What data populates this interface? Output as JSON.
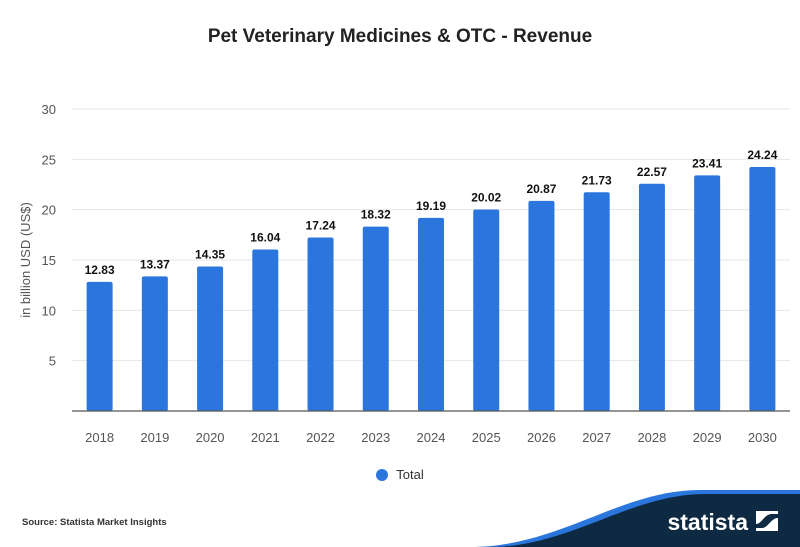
{
  "chart_data": {
    "type": "bar",
    "title": "Pet Veterinary Medicines & OTC - Revenue",
    "ylabel": "in billion USD (US$)",
    "xlabel": "",
    "ylim": [
      0,
      30
    ],
    "yticks": [
      5,
      10,
      15,
      20,
      25,
      30
    ],
    "grid": true,
    "categories": [
      "2018",
      "2019",
      "2020",
      "2021",
      "2022",
      "2023",
      "2024",
      "2025",
      "2026",
      "2027",
      "2028",
      "2029",
      "2030"
    ],
    "series": [
      {
        "name": "Total",
        "values": [
          12.83,
          13.37,
          14.35,
          16.04,
          17.24,
          18.32,
          19.19,
          20.02,
          20.87,
          21.73,
          22.57,
          23.41,
          24.24
        ],
        "color": "#2a76dd"
      }
    ],
    "legend_position": "bottom"
  },
  "source": "Source: Statista Market Insights",
  "brand": "statista"
}
